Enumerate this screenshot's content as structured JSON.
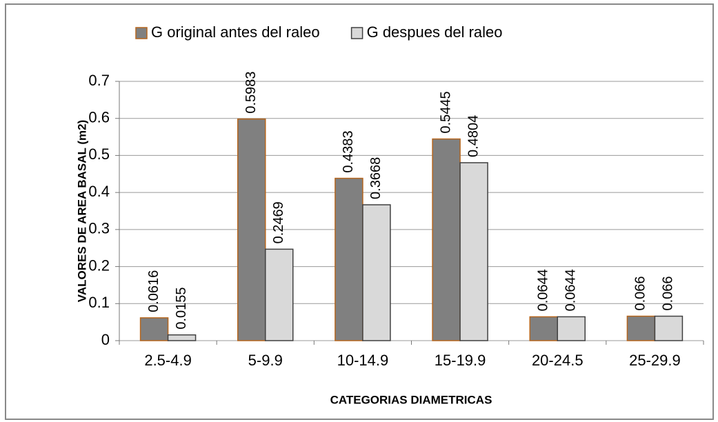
{
  "chart_data": {
    "type": "bar",
    "xlabel": "CATEGORIAS DIAMETRICAS",
    "ylabel": "VALORES DE AREA BASAL (m2)",
    "categories": [
      "2.5-4.9",
      "5-9.9",
      "10-14.9",
      "15-19.9",
      "20-24.5",
      "25-29.9"
    ],
    "series": [
      {
        "name": "G original antes del raleo",
        "color": "#808080",
        "edge": "#b5651d",
        "values": [
          0.0616,
          0.5983,
          0.4383,
          0.5445,
          0.0644,
          0.066
        ]
      },
      {
        "name": "G despues del raleo",
        "color": "#d9d9d9",
        "edge": "#404040",
        "values": [
          0.0155,
          0.2469,
          0.3668,
          0.4804,
          0.0644,
          0.066
        ]
      }
    ],
    "ylim": [
      0,
      0.7
    ],
    "yticks": [
      0,
      0.1,
      0.2,
      0.3,
      0.4,
      0.5,
      0.6,
      0.7
    ],
    "grid": true,
    "legend": "top"
  }
}
